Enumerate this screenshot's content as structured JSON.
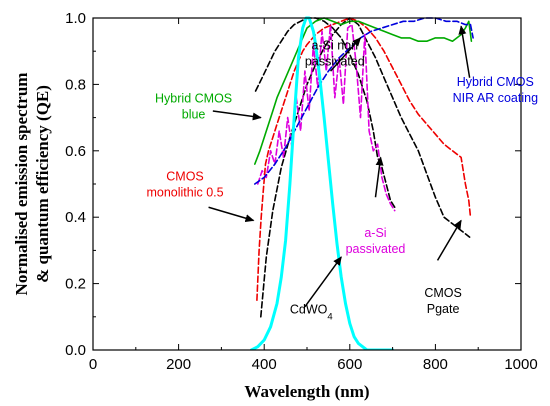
{
  "chart_data": {
    "type": "line",
    "xlabel": "Wavelength (nm)",
    "ylabel": "Normalised emission spectrum & quantum efficiency (QE)",
    "ylabel_lines": [
      "Normalised emission spectrum",
      "& quantum efficiency (QE)"
    ],
    "xlim": [
      0,
      1000
    ],
    "ylim": [
      0,
      1.0
    ],
    "x_ticks": [
      "0",
      "200",
      "400",
      "600",
      "800",
      "1000"
    ],
    "y_ticks": [
      "0.0",
      "0.2",
      "0.4",
      "0.6",
      "0.8",
      "1.0"
    ],
    "grid": false,
    "series": [
      {
        "name": "CMOS Pgate",
        "color": "#000000",
        "dash": "dashed",
        "x": [
          392,
          405,
          420,
          440,
          460,
          480,
          500,
          520,
          540,
          560,
          580,
          600,
          620,
          640,
          660,
          680,
          700,
          720,
          740,
          760,
          780,
          800,
          820,
          840,
          860,
          880
        ],
        "y": [
          0.1,
          0.28,
          0.42,
          0.55,
          0.64,
          0.72,
          0.8,
          0.86,
          0.91,
          0.95,
          0.98,
          1.0,
          0.98,
          0.93,
          0.88,
          0.82,
          0.76,
          0.7,
          0.65,
          0.6,
          0.53,
          0.46,
          0.4,
          0.38,
          0.36,
          0.34
        ]
      },
      {
        "name": "a-Si non passivated",
        "color": "#000000",
        "dash": "dashed",
        "x": [
          380,
          395,
          410,
          425,
          440,
          455,
          470,
          485,
          500,
          520,
          540,
          560,
          580,
          600,
          620,
          640,
          655,
          665,
          675,
          685,
          695,
          705
        ],
        "y": [
          0.78,
          0.82,
          0.86,
          0.9,
          0.93,
          0.96,
          0.98,
          0.99,
          1.0,
          1.0,
          0.99,
          0.97,
          0.94,
          0.89,
          0.83,
          0.75,
          0.66,
          0.58,
          0.55,
          0.5,
          0.45,
          0.43
        ]
      },
      {
        "name": "a-Si passivated",
        "color": "#dd00dd",
        "dash": "dashed",
        "x": [
          385,
          395,
          405,
          415,
          425,
          435,
          445,
          455,
          465,
          475,
          485,
          495,
          505,
          515,
          525,
          535,
          545,
          555,
          565,
          575,
          585,
          595,
          605,
          615,
          625,
          635,
          645,
          655,
          665,
          675,
          685,
          695,
          705
        ],
        "y": [
          0.5,
          0.54,
          0.52,
          0.6,
          0.56,
          0.66,
          0.58,
          0.7,
          0.61,
          0.76,
          0.66,
          0.84,
          0.72,
          0.92,
          0.79,
          0.96,
          0.84,
          0.98,
          0.76,
          0.88,
          0.74,
          0.97,
          0.98,
          0.86,
          0.7,
          0.95,
          0.66,
          0.6,
          0.62,
          0.52,
          0.47,
          0.44,
          0.42
        ]
      },
      {
        "name": "CMOS monolithic 0.5",
        "color": "#ee0000",
        "dash": "dashed",
        "x": [
          383,
          388,
          393,
          398,
          403,
          410,
          420,
          430,
          440,
          450,
          460,
          470,
          480,
          490,
          500,
          520,
          540,
          560,
          580,
          600,
          620,
          640,
          660,
          680,
          700,
          720,
          740,
          760,
          780,
          800,
          820,
          840,
          860,
          870,
          878,
          882
        ],
        "y": [
          0.15,
          0.3,
          0.4,
          0.48,
          0.56,
          0.6,
          0.64,
          0.68,
          0.72,
          0.76,
          0.8,
          0.84,
          0.87,
          0.9,
          0.92,
          0.95,
          0.97,
          0.98,
          0.99,
          1.0,
          0.99,
          0.97,
          0.94,
          0.9,
          0.85,
          0.8,
          0.75,
          0.71,
          0.68,
          0.65,
          0.62,
          0.6,
          0.58,
          0.5,
          0.45,
          0.4
        ]
      },
      {
        "name": "Hybrid CMOS blue",
        "color": "#00aa00",
        "dash": "solid",
        "x": [
          378,
          390,
          400,
          410,
          420,
          430,
          440,
          450,
          460,
          470,
          480,
          490,
          500,
          520,
          540,
          560,
          580,
          600,
          620,
          640,
          660,
          680,
          700,
          720,
          740,
          760,
          780,
          800,
          820,
          840,
          860,
          870,
          878,
          884
        ],
        "y": [
          0.56,
          0.6,
          0.64,
          0.68,
          0.72,
          0.76,
          0.79,
          0.82,
          0.85,
          0.88,
          0.91,
          0.94,
          0.97,
          0.99,
          1.0,
          0.99,
          0.98,
          0.99,
          0.99,
          0.98,
          0.97,
          0.96,
          0.95,
          0.94,
          0.94,
          0.93,
          0.93,
          0.94,
          0.94,
          0.93,
          0.95,
          0.97,
          0.99,
          0.93
        ]
      },
      {
        "name": "Hybrid CMOS NIR AR coating",
        "color": "#0000dd",
        "dash": "dashed",
        "x": [
          378,
          400,
          425,
          450,
          475,
          500,
          525,
          550,
          575,
          600,
          625,
          650,
          675,
          700,
          725,
          750,
          775,
          800,
          825,
          850,
          870,
          882,
          888
        ],
        "y": [
          0.5,
          0.52,
          0.56,
          0.61,
          0.67,
          0.73,
          0.79,
          0.84,
          0.88,
          0.91,
          0.94,
          0.96,
          0.97,
          0.98,
          0.99,
          0.99,
          1.0,
          1.0,
          0.99,
          0.99,
          0.98,
          0.98,
          0.94
        ]
      },
      {
        "name": "CdWO4",
        "color": "#00ffff",
        "dash": "solid",
        "x": [
          370,
          385,
          400,
          415,
          430,
          440,
          450,
          460,
          470,
          480,
          490,
          498,
          505,
          510,
          515,
          520,
          530,
          540,
          550,
          560,
          570,
          580,
          590,
          600,
          610,
          620,
          630,
          640,
          650,
          660,
          670,
          680,
          700
        ],
        "y": [
          0.0,
          0.01,
          0.03,
          0.07,
          0.14,
          0.22,
          0.33,
          0.5,
          0.7,
          0.88,
          0.97,
          1.0,
          1.0,
          0.98,
          0.96,
          0.92,
          0.82,
          0.7,
          0.57,
          0.44,
          0.32,
          0.22,
          0.14,
          0.08,
          0.04,
          0.02,
          0.01,
          0.0,
          0.0,
          0.0,
          0.0,
          0.0,
          0.0
        ]
      }
    ],
    "annotations": [
      {
        "lines": [
          "a-Si non",
          "passivated"
        ],
        "color": "#000000",
        "text_at": [
          565,
          0.905
        ],
        "anchor": "middle",
        "arrow_from": [
          555,
          0.84
        ],
        "arrow_to": [
          625,
          0.94
        ]
      },
      {
        "lines": [
          "Hybrid CMOS",
          "blue"
        ],
        "color": "#00aa00",
        "text_at": [
          235,
          0.745
        ],
        "anchor": "middle",
        "arrow_from": [
          280,
          0.72
        ],
        "arrow_to": [
          392,
          0.7
        ]
      },
      {
        "lines": [
          "CMOS",
          "monolithic 0.5"
        ],
        "color": "#ee0000",
        "text_at": [
          215,
          0.51
        ],
        "anchor": "middle",
        "arrow_from": [
          270,
          0.43
        ],
        "arrow_to": [
          375,
          0.39
        ]
      },
      {
        "lines": [
          "Hybrid CMOS",
          "NIR AR coating"
        ],
        "color": "#0000dd",
        "text_at": [
          940,
          0.795
        ],
        "anchor": "middle",
        "arrow_from": [
          880,
          0.82
        ],
        "arrow_to": [
          860,
          0.975
        ]
      },
      {
        "lines": [
          "a-Si",
          "passivated"
        ],
        "color": "#dd00dd",
        "text_at": [
          660,
          0.34
        ],
        "anchor": "middle",
        "arrow_from": [
          660,
          0.46
        ],
        "arrow_to": [
          672,
          0.58
        ]
      },
      {
        "lines": [
          "CdWO4"
        ],
        "color": "#000000",
        "text_at": [
          510,
          0.11
        ],
        "anchor": "middle",
        "subscript": "4",
        "arrow_from": [
          495,
          0.13
        ],
        "arrow_to": [
          580,
          0.28
        ]
      },
      {
        "lines": [
          "CMOS",
          "Pgate"
        ],
        "color": "#000000",
        "text_at": [
          818,
          0.16
        ],
        "anchor": "middle",
        "arrow_from": [
          805,
          0.27
        ],
        "arrow_to": [
          860,
          0.39
        ]
      }
    ]
  }
}
